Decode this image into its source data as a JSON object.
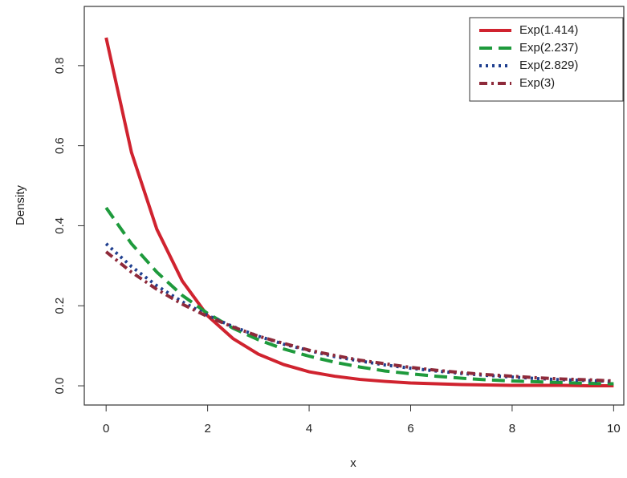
{
  "chart_data": {
    "type": "line",
    "x_label": "x",
    "y_label": "Density",
    "x": [
      0,
      0.5,
      1,
      1.5,
      2,
      2.5,
      3,
      3.5,
      4,
      4.5,
      5,
      5.5,
      6,
      6.5,
      7,
      7.5,
      8,
      8.5,
      9,
      9.5,
      10
    ],
    "series": [
      {
        "name": "Exp(1.414)",
        "color": "#d0232f",
        "dash": "solid",
        "values": [
          0.87,
          0.583,
          0.391,
          0.262,
          0.175,
          0.118,
          0.079,
          0.053,
          0.035,
          0.024,
          0.016,
          0.011,
          0.007,
          0.005,
          0.003,
          0.002,
          0.001,
          0.001,
          0.001,
          0,
          0
        ]
      },
      {
        "name": "Exp(2.237)",
        "color": "#1e9a3c",
        "dash": "long",
        "values": [
          0.445,
          0.355,
          0.284,
          0.226,
          0.181,
          0.144,
          0.115,
          0.092,
          0.074,
          0.059,
          0.047,
          0.037,
          0.03,
          0.024,
          0.019,
          0.015,
          0.012,
          0.01,
          0.008,
          0.006,
          0.005
        ]
      },
      {
        "name": "Exp(2.829)",
        "color": "#1f3f8f",
        "dash": "dot",
        "values": [
          0.355,
          0.298,
          0.25,
          0.21,
          0.176,
          0.148,
          0.124,
          0.104,
          0.088,
          0.073,
          0.062,
          0.052,
          0.044,
          0.037,
          0.031,
          0.026,
          0.022,
          0.018,
          0.015,
          0.013,
          0.011
        ]
      },
      {
        "name": "Exp(3)",
        "color": "#8e2a3a",
        "dash": "dashdot",
        "values": [
          0.335,
          0.284,
          0.241,
          0.204,
          0.173,
          0.147,
          0.124,
          0.106,
          0.089,
          0.076,
          0.064,
          0.055,
          0.046,
          0.039,
          0.033,
          0.028,
          0.024,
          0.02,
          0.017,
          0.015,
          0.012
        ]
      }
    ],
    "xlim": [
      -0.43,
      10.2
    ],
    "ylim": [
      -0.048,
      0.948
    ],
    "xticks": [
      0,
      2,
      4,
      6,
      8,
      10
    ],
    "yticks": [
      {
        "value": 0,
        "label": "0.0"
      },
      {
        "value": 0.2,
        "label": "0.2"
      },
      {
        "value": 0.4,
        "label": "0.4"
      },
      {
        "value": 0.6,
        "label": "0.6"
      },
      {
        "value": 0.8,
        "label": "0.8"
      }
    ],
    "legend": "top-right"
  }
}
